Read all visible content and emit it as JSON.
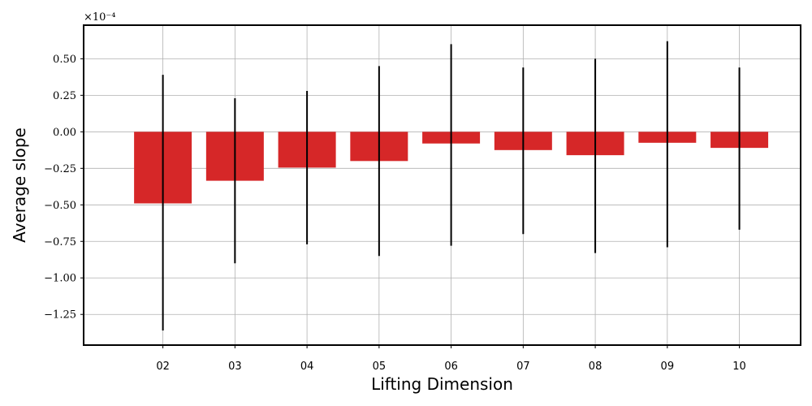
{
  "chart_data": {
    "type": "bar",
    "title": "",
    "xlabel": "Lifting Dimension",
    "ylabel": "Average slope",
    "y_offset_label": "×10⁻⁴",
    "y_scale": 0.0001,
    "categories": [
      "02",
      "03",
      "04",
      "05",
      "06",
      "07",
      "08",
      "09",
      "10"
    ],
    "series": [
      {
        "values": [
          -0.49,
          -0.335,
          -0.245,
          -0.2,
          -0.08,
          -0.125,
          -0.16,
          -0.075,
          -0.11
        ],
        "error_upper": [
          0.39,
          0.23,
          0.28,
          0.45,
          0.6,
          0.44,
          0.5,
          0.62,
          0.44
        ],
        "error_lower": [
          -1.36,
          -0.9,
          -0.77,
          -0.85,
          -0.78,
          -0.7,
          -0.83,
          -0.79,
          -0.67
        ],
        "color": "#d62728"
      }
    ],
    "yticks": [
      "0.50",
      "0.25",
      "0.00",
      "−0.25",
      "−0.50",
      "−0.75",
      "−1.00",
      "−1.25"
    ],
    "ytick_values": [
      0.5,
      0.25,
      0,
      -0.25,
      -0.5,
      -0.75,
      -1.0,
      -1.25
    ],
    "ylim": [
      -1.46,
      0.73
    ],
    "xlim": [
      -1.1,
      8.85
    ],
    "grid": true,
    "error_color": "#000000"
  }
}
